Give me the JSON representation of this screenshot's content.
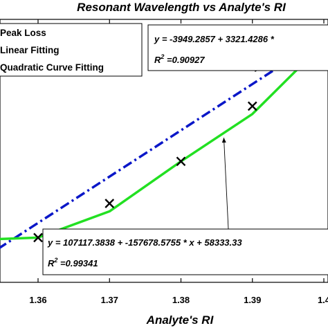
{
  "chart_data": {
    "type": "scatter",
    "title": "Resonant Wavelength vs Analyte's RI",
    "xlabel": "Analyte's RI",
    "ylabel": "",
    "xlim": [
      1.35,
      1.4
    ],
    "ylim": [
      0,
      1
    ],
    "x_ticks": [
      "1.36",
      "1.37",
      "1.38",
      "1.39",
      "1.4"
    ],
    "grid": false,
    "legend": {
      "placement": "top-left",
      "entries": [
        "Peak Loss",
        "Linear Fitting",
        "Quadratic Curve Fitting"
      ]
    },
    "series": [
      {
        "name": "Peak Loss",
        "kind": "markers",
        "marker": "x",
        "color": "#000000",
        "x": [
          1.36,
          1.37,
          1.38,
          1.39,
          1.4
        ],
        "y": [
          0.17,
          0.3,
          0.46,
          0.67,
          0.87
        ]
      },
      {
        "name": "Linear Fitting",
        "kind": "line",
        "dash": "dash-dot",
        "color": "#0a17c8",
        "x": [
          1.35,
          1.4
        ],
        "y": [
          0.05,
          0.93
        ]
      },
      {
        "name": "Quadratic Curve Fitting",
        "kind": "line",
        "color": "#22e022",
        "x": [
          1.35,
          1.36,
          1.37,
          1.38,
          1.39,
          1.4
        ],
        "y": [
          0.16,
          0.17,
          0.27,
          0.46,
          0.64,
          0.91
        ]
      }
    ],
    "annotations": [
      {
        "equation": "y = -3949.2857 + 3321.4286 *",
        "r_squared": "R^2 =0.90927",
        "arrow_to": {
          "x": 1.391,
          "y": 0.81
        }
      },
      {
        "equation": "y = 107117.3838 + -157678.5755 * x + 58333.33",
        "r_squared": "R^2 =0.99341",
        "arrow_to": {
          "x": 1.386,
          "y": 0.55
        }
      }
    ]
  },
  "labels": {
    "eq1_line1": "y = -3949.2857 + 3321.4286 *",
    "eq1_r2_prefix": "R",
    "eq1_r2_sup": "2",
    "eq1_r2_value": " =0.90927",
    "eq2_line1": "y = 107117.3838 + -157678.5755 * x + 58333.33",
    "eq2_r2_prefix": "R",
    "eq2_r2_sup": "2",
    "eq2_r2_value": " =0.99341"
  },
  "colors": {
    "linear": "#0a17c8",
    "quadratic": "#22e022",
    "markers": "#000000",
    "axes": "#000000",
    "background": "#ffffff"
  }
}
